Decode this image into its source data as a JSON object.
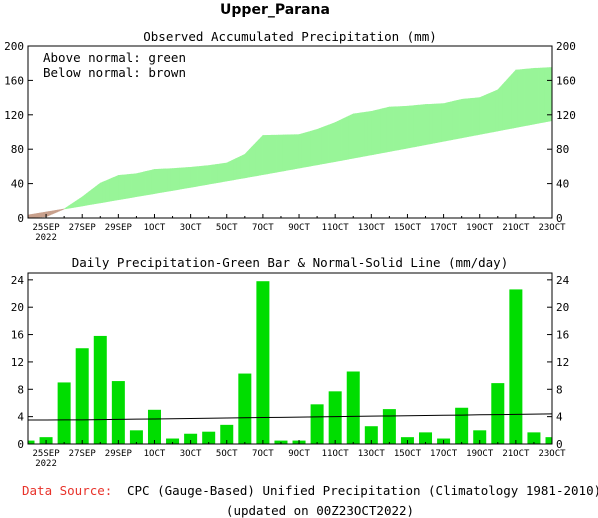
{
  "title": "Upper_Parana",
  "top_panel": {
    "title": "Observed Accumulated Precipitation (mm)",
    "legend_line1": "Above normal: green",
    "legend_line2": "Below normal: brown"
  },
  "bottom_panel": {
    "title": "Daily Precipitation-Green Bar & Normal-Solid Line (mm/day)"
  },
  "x_ticks": [
    "25SEP",
    "27SEP",
    "29SEP",
    "1OCT",
    "3OCT",
    "5OCT",
    "7OCT",
    "9OCT",
    "11OCT",
    "13OCT",
    "15OCT",
    "17OCT",
    "19OCT",
    "21OCT",
    "23OCT"
  ],
  "year_label": "2022",
  "footer": {
    "source_label": "Data Source:",
    "source_text": "CPC (Gauge-Based) Unified Precipitation (Climatology 1981-2010)",
    "updated_text": "(updated on 00Z23OCT2022)"
  },
  "colors": {
    "above_normal": "#98f598",
    "below_normal": "#c8a08c",
    "bar": "#00dd00",
    "source_label": "#e8322a"
  },
  "chart_data": [
    {
      "type": "area",
      "title": "Observed Accumulated Precipitation (mm)",
      "x": [
        "24SEP",
        "25SEP",
        "26SEP",
        "27SEP",
        "28SEP",
        "29SEP",
        "30SEP",
        "1OCT",
        "2OCT",
        "3OCT",
        "4OCT",
        "5OCT",
        "6OCT",
        "7OCT",
        "8OCT",
        "9OCT",
        "10OCT",
        "11OCT",
        "12OCT",
        "13OCT",
        "14OCT",
        "15OCT",
        "16OCT",
        "17OCT",
        "18OCT",
        "19OCT",
        "20OCT",
        "21OCT",
        "22OCT",
        "23OCT"
      ],
      "ylim": [
        0,
        200
      ],
      "yticks": [
        0,
        40,
        80,
        120,
        160,
        200
      ],
      "series": [
        {
          "name": "observed",
          "values": [
            0.5,
            1.5,
            10.5,
            24.5,
            40.5,
            49.5,
            51.5,
            56.5,
            57.5,
            59,
            61,
            64,
            74,
            96,
            96.5,
            97,
            103,
            111,
            121,
            124,
            129,
            130,
            132,
            133,
            138,
            140,
            149,
            172,
            174,
            175
          ]
        },
        {
          "name": "normal",
          "values": [
            3.5,
            7.0,
            10.5,
            14.0,
            17.6,
            21.2,
            24.8,
            28.4,
            32.0,
            35.6,
            39.3,
            43.0,
            46.7,
            50.4,
            54.2,
            58.0,
            61.8,
            65.6,
            69.5,
            73.4,
            77.3,
            81.2,
            85.2,
            89.2,
            93.2,
            97.2,
            101.2,
            105.2,
            109.2,
            113.2
          ]
        }
      ]
    },
    {
      "type": "bar",
      "title": "Daily Precipitation-Green Bar & Normal-Solid Line (mm/day)",
      "categories": [
        "24SEP",
        "25SEP",
        "26SEP",
        "27SEP",
        "28SEP",
        "29SEP",
        "30SEP",
        "1OCT",
        "2OCT",
        "3OCT",
        "4OCT",
        "5OCT",
        "6OCT",
        "7OCT",
        "8OCT",
        "9OCT",
        "10OCT",
        "11OCT",
        "12OCT",
        "13OCT",
        "14OCT",
        "15OCT",
        "16OCT",
        "17OCT",
        "18OCT",
        "19OCT",
        "20OCT",
        "21OCT",
        "22OCT",
        "23OCT"
      ],
      "ylim": [
        0,
        25
      ],
      "yticks": [
        0,
        4,
        8,
        12,
        16,
        20,
        24
      ],
      "series": [
        {
          "name": "daily",
          "values": [
            0.5,
            1.0,
            9.0,
            14.0,
            15.8,
            9.2,
            2.0,
            5.0,
            0.8,
            1.5,
            1.8,
            2.8,
            10.3,
            23.8,
            0.5,
            0.5,
            5.8,
            7.7,
            10.6,
            2.6,
            5.1,
            1.0,
            1.7,
            0.8,
            5.3,
            2.0,
            8.9,
            22.6,
            1.7,
            1.0
          ]
        },
        {
          "name": "normal",
          "values": [
            3.5,
            3.51,
            3.52,
            3.53,
            3.56,
            3.6,
            3.63,
            3.66,
            3.7,
            3.73,
            3.77,
            3.8,
            3.83,
            3.87,
            3.9,
            3.93,
            3.97,
            4.0,
            4.03,
            4.07,
            4.1,
            4.13,
            4.17,
            4.2,
            4.23,
            4.27,
            4.3,
            4.33,
            4.37,
            4.4
          ]
        }
      ]
    }
  ]
}
